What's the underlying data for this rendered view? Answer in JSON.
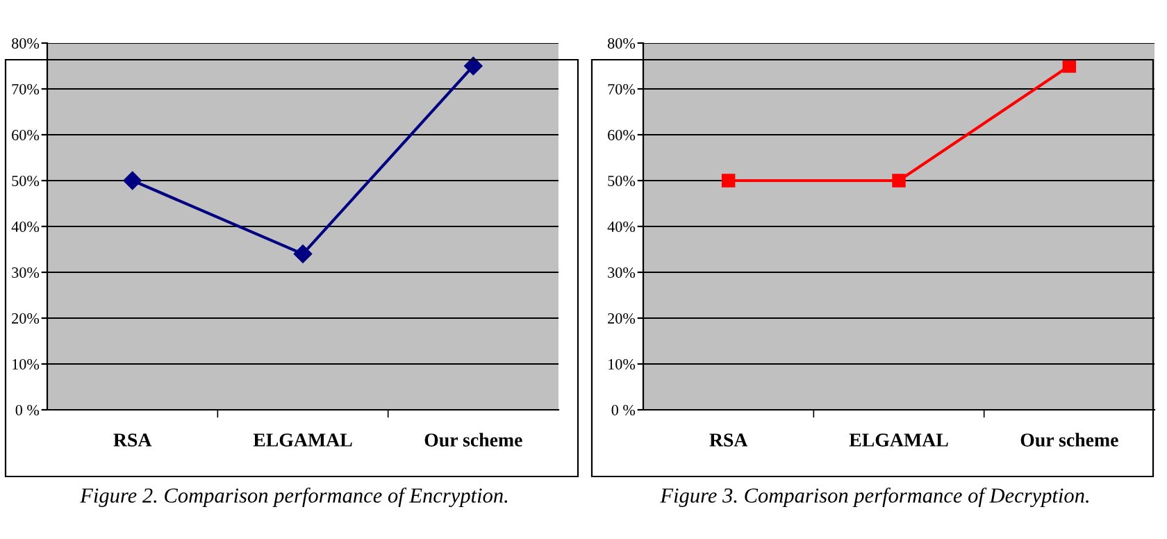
{
  "chart_data": [
    {
      "type": "line",
      "categories": [
        "RSA",
        "ELGAMAL",
        "Our scheme"
      ],
      "series": [
        {
          "color": "#000080",
          "values": [
            50,
            34,
            75
          ]
        }
      ],
      "marker": "diamond",
      "line_style": "solid",
      "grid": "y",
      "legend": false,
      "ylim": [
        0,
        80
      ],
      "yticks": [
        {
          "value": 0,
          "label": "0 %"
        },
        {
          "value": 10,
          "label": "10%"
        },
        {
          "value": 20,
          "label": "20%"
        },
        {
          "value": 30,
          "label": "30%"
        },
        {
          "value": 40,
          "label": "40%"
        },
        {
          "value": 50,
          "label": "50%"
        },
        {
          "value": 60,
          "label": "60%"
        },
        {
          "value": 70,
          "label": "70%"
        },
        {
          "value": 80,
          "label": "80%"
        }
      ],
      "annotations": [
        "Figure 2. Comparison performance of Encryption."
      ]
    },
    {
      "type": "line",
      "categories": [
        "RSA",
        "ELGAMAL",
        "Our scheme"
      ],
      "series": [
        {
          "color": "#ff0000",
          "values": [
            50,
            50,
            75
          ]
        }
      ],
      "marker": "square",
      "line_style": "solid",
      "grid": "y",
      "legend": false,
      "ylim": [
        0,
        80
      ],
      "yticks": [
        {
          "value": 0,
          "label": "0 %"
        },
        {
          "value": 10,
          "label": "10%"
        },
        {
          "value": 20,
          "label": "20%"
        },
        {
          "value": 30,
          "label": "30%"
        },
        {
          "value": 40,
          "label": "40%"
        },
        {
          "value": 50,
          "label": "50%"
        },
        {
          "value": 60,
          "label": "60%"
        },
        {
          "value": 70,
          "label": "70%"
        },
        {
          "value": 80,
          "label": "80%"
        }
      ],
      "annotations": [
        "Figure 3. Comparison performance of Decryption."
      ]
    }
  ]
}
